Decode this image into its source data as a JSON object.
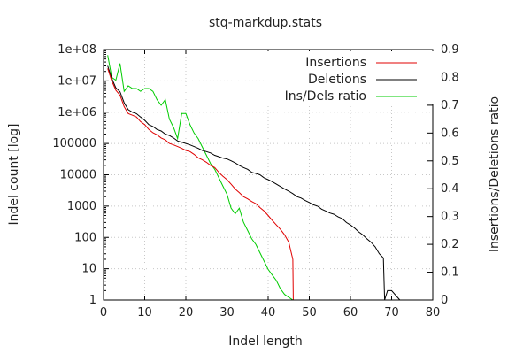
{
  "chart_data": {
    "type": "line",
    "title": "stq-markdup.stats",
    "xlabel": "Indel length",
    "ylabel": "Indel count [log]",
    "y2label": "Insertions/Deletions ratio",
    "xlim": [
      0,
      80
    ],
    "ylim": [
      1,
      100000000
    ],
    "y2lim": [
      0,
      0.9
    ],
    "yscale": "log",
    "grid": true,
    "legend_position": "top-right",
    "x_ticks": [
      "0",
      "10",
      "20",
      "30",
      "40",
      "50",
      "60",
      "70",
      "80"
    ],
    "y_ticks": [
      "1",
      "10",
      "100",
      "1000",
      "10000",
      "100000",
      "1e+06",
      "1e+07",
      "1e+08"
    ],
    "y2_ticks": [
      "0",
      "0.1",
      "0.2",
      "0.3",
      "0.4",
      "0.5",
      "0.6",
      "0.7",
      "0.8",
      "0.9"
    ],
    "series": [
      {
        "name": "Insertions",
        "color": "#e00000",
        "axis": "y",
        "points": [
          [
            1,
            25000000
          ],
          [
            2,
            10000000
          ],
          [
            3,
            5000000
          ],
          [
            4,
            3500000
          ],
          [
            5,
            1500000
          ],
          [
            6,
            900000
          ],
          [
            7,
            800000
          ],
          [
            8,
            700000
          ],
          [
            9,
            500000
          ],
          [
            10,
            400000
          ],
          [
            11,
            280000
          ],
          [
            12,
            220000
          ],
          [
            13,
            190000
          ],
          [
            14,
            150000
          ],
          [
            15,
            130000
          ],
          [
            16,
            100000
          ],
          [
            17,
            90000
          ],
          [
            18,
            80000
          ],
          [
            19,
            70000
          ],
          [
            20,
            60000
          ],
          [
            21,
            55000
          ],
          [
            22,
            45000
          ],
          [
            23,
            35000
          ],
          [
            24,
            30000
          ],
          [
            25,
            25000
          ],
          [
            26,
            20000
          ],
          [
            27,
            17000
          ],
          [
            28,
            12000
          ],
          [
            29,
            9000
          ],
          [
            30,
            7000
          ],
          [
            31,
            5000
          ],
          [
            32,
            3500
          ],
          [
            33,
            2700
          ],
          [
            34,
            2000
          ],
          [
            35,
            1700
          ],
          [
            36,
            1400
          ],
          [
            37,
            1200
          ],
          [
            38,
            900
          ],
          [
            39,
            700
          ],
          [
            40,
            500
          ],
          [
            41,
            350
          ],
          [
            42,
            250
          ],
          [
            43,
            180
          ],
          [
            44,
            120
          ],
          [
            45,
            70
          ],
          [
            46,
            20
          ],
          [
            46.1,
            1
          ]
        ]
      },
      {
        "name": "Deletions",
        "color": "#000000",
        "axis": "y",
        "points": [
          [
            1,
            30000000
          ],
          [
            2,
            12000000
          ],
          [
            3,
            6000000
          ],
          [
            4,
            4500000
          ],
          [
            5,
            2000000
          ],
          [
            6,
            1200000
          ],
          [
            7,
            1000000
          ],
          [
            8,
            900000
          ],
          [
            9,
            700000
          ],
          [
            10,
            550000
          ],
          [
            11,
            400000
          ],
          [
            12,
            350000
          ],
          [
            13,
            280000
          ],
          [
            14,
            250000
          ],
          [
            15,
            200000
          ],
          [
            16,
            180000
          ],
          [
            17,
            150000
          ],
          [
            18,
            120000
          ],
          [
            19,
            110000
          ],
          [
            20,
            100000
          ],
          [
            21,
            90000
          ],
          [
            22,
            80000
          ],
          [
            23,
            70000
          ],
          [
            24,
            60000
          ],
          [
            25,
            55000
          ],
          [
            26,
            50000
          ],
          [
            27,
            42000
          ],
          [
            28,
            38000
          ],
          [
            29,
            34000
          ],
          [
            30,
            32000
          ],
          [
            31,
            28000
          ],
          [
            32,
            24000
          ],
          [
            33,
            20000
          ],
          [
            34,
            17000
          ],
          [
            35,
            15000
          ],
          [
            36,
            12000
          ],
          [
            37,
            11000
          ],
          [
            38,
            10000
          ],
          [
            39,
            8000
          ],
          [
            40,
            7000
          ],
          [
            41,
            6000
          ],
          [
            42,
            5000
          ],
          [
            43,
            4200
          ],
          [
            44,
            3500
          ],
          [
            45,
            3000
          ],
          [
            46,
            2500
          ],
          [
            47,
            2000
          ],
          [
            48,
            1800
          ],
          [
            49,
            1500
          ],
          [
            50,
            1300
          ],
          [
            51,
            1100
          ],
          [
            52,
            1000
          ],
          [
            53,
            800
          ],
          [
            54,
            700
          ],
          [
            55,
            600
          ],
          [
            56,
            550
          ],
          [
            57,
            450
          ],
          [
            58,
            400
          ],
          [
            59,
            300
          ],
          [
            60,
            250
          ],
          [
            61,
            200
          ],
          [
            62,
            150
          ],
          [
            63,
            120
          ],
          [
            64,
            90
          ],
          [
            65,
            70
          ],
          [
            66,
            50
          ],
          [
            67,
            30
          ],
          [
            68,
            22
          ],
          [
            68.3,
            1
          ],
          [
            69,
            2
          ],
          [
            70,
            2
          ],
          [
            72,
            1
          ]
        ]
      },
      {
        "name": "Ins/Dels ratio",
        "color": "#00cc00",
        "axis": "y2",
        "points": [
          [
            1,
            0.88
          ],
          [
            2,
            0.8
          ],
          [
            3,
            0.79
          ],
          [
            4,
            0.85
          ],
          [
            5,
            0.75
          ],
          [
            6,
            0.77
          ],
          [
            7,
            0.76
          ],
          [
            8,
            0.76
          ],
          [
            9,
            0.75
          ],
          [
            10,
            0.76
          ],
          [
            11,
            0.76
          ],
          [
            12,
            0.75
          ],
          [
            13,
            0.72
          ],
          [
            14,
            0.7
          ],
          [
            15,
            0.72
          ],
          [
            16,
            0.65
          ],
          [
            17,
            0.62
          ],
          [
            18,
            0.58
          ],
          [
            19,
            0.67
          ],
          [
            20,
            0.67
          ],
          [
            21,
            0.63
          ],
          [
            22,
            0.6
          ],
          [
            23,
            0.58
          ],
          [
            24,
            0.55
          ],
          [
            25,
            0.52
          ],
          [
            26,
            0.49
          ],
          [
            27,
            0.47
          ],
          [
            28,
            0.44
          ],
          [
            29,
            0.41
          ],
          [
            30,
            0.38
          ],
          [
            31,
            0.33
          ],
          [
            32,
            0.31
          ],
          [
            33,
            0.33
          ],
          [
            34,
            0.28
          ],
          [
            35,
            0.25
          ],
          [
            36,
            0.22
          ],
          [
            37,
            0.2
          ],
          [
            38,
            0.17
          ],
          [
            39,
            0.14
          ],
          [
            40,
            0.11
          ],
          [
            41,
            0.09
          ],
          [
            42,
            0.07
          ],
          [
            43,
            0.04
          ],
          [
            44,
            0.02
          ],
          [
            45,
            0.01
          ],
          [
            46,
            0.0
          ]
        ]
      }
    ]
  }
}
